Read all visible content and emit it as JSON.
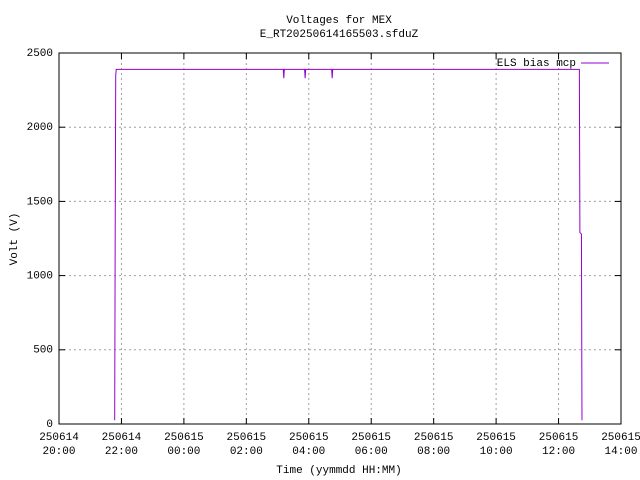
{
  "chart_data": {
    "type": "line",
    "title": "Voltages for MEX",
    "subtitle": "E_RT20250614165503.sfduZ",
    "x_label": "Time (yymmdd HH:MM)",
    "y_label": "Volt (V)",
    "x": [
      "250614 21:47",
      "250614 21:48",
      "250614 21:49",
      "250614 21:50",
      "250615 03:11",
      "250615 03:12",
      "250615 03:13",
      "250615 03:52",
      "250615 03:53",
      "250615 03:54",
      "250615 04:44",
      "250615 04:45",
      "250615 04:46",
      "250615 12:40",
      "250615 12:41",
      "250615 12:44",
      "250615 12:45"
    ],
    "series": [
      {
        "name": "ELS bias mcp",
        "color": "#9400d3",
        "values": [
          25,
          1280,
          2350,
          2390,
          2390,
          2330,
          2390,
          2390,
          2330,
          2390,
          2390,
          2330,
          2390,
          2390,
          1290,
          1280,
          25
        ]
      }
    ],
    "xlim": [
      "250614 20:00",
      "250615 14:00"
    ],
    "xticks": [
      "250614 20:00",
      "250614 22:00",
      "250615 00:00",
      "250615 02:00",
      "250615 04:00",
      "250615 06:00",
      "250615 08:00",
      "250615 10:00",
      "250615 12:00",
      "250615 14:00"
    ],
    "ylim": [
      0,
      2500
    ],
    "yticks": [
      0,
      500,
      1000,
      1500,
      2000,
      2500
    ],
    "grid": true,
    "legend": "top-right"
  }
}
